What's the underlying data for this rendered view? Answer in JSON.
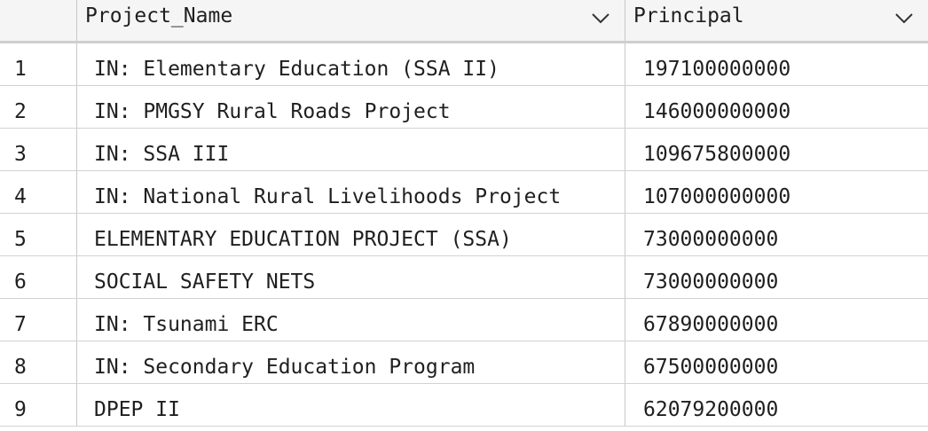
{
  "table": {
    "columns": [
      {
        "label": "",
        "icon": null
      },
      {
        "label": "Project_Name",
        "icon": "chevron-down-icon"
      },
      {
        "label": "Principal",
        "icon": "chevron-down-icon"
      }
    ],
    "rows": [
      {
        "index": "1",
        "project_name": "IN: Elementary Education (SSA II)",
        "principal": "197100000000"
      },
      {
        "index": "2",
        "project_name": "IN: PMGSY Rural Roads Project",
        "principal": "146000000000"
      },
      {
        "index": "3",
        "project_name": "IN: SSA III",
        "principal": "109675800000"
      },
      {
        "index": "4",
        "project_name": "IN: National Rural Livelihoods Project",
        "principal": "107000000000"
      },
      {
        "index": "5",
        "project_name": "ELEMENTARY EDUCATION PROJECT (SSA)",
        "principal": "73000000000"
      },
      {
        "index": "6",
        "project_name": "SOCIAL SAFETY NETS",
        "principal": "73000000000"
      },
      {
        "index": "7",
        "project_name": "IN: Tsunami ERC",
        "principal": "67890000000"
      },
      {
        "index": "8",
        "project_name": "IN: Secondary Education Program",
        "principal": "67500000000"
      },
      {
        "index": "9",
        "project_name": "DPEP II",
        "principal": "62079200000"
      }
    ]
  }
}
